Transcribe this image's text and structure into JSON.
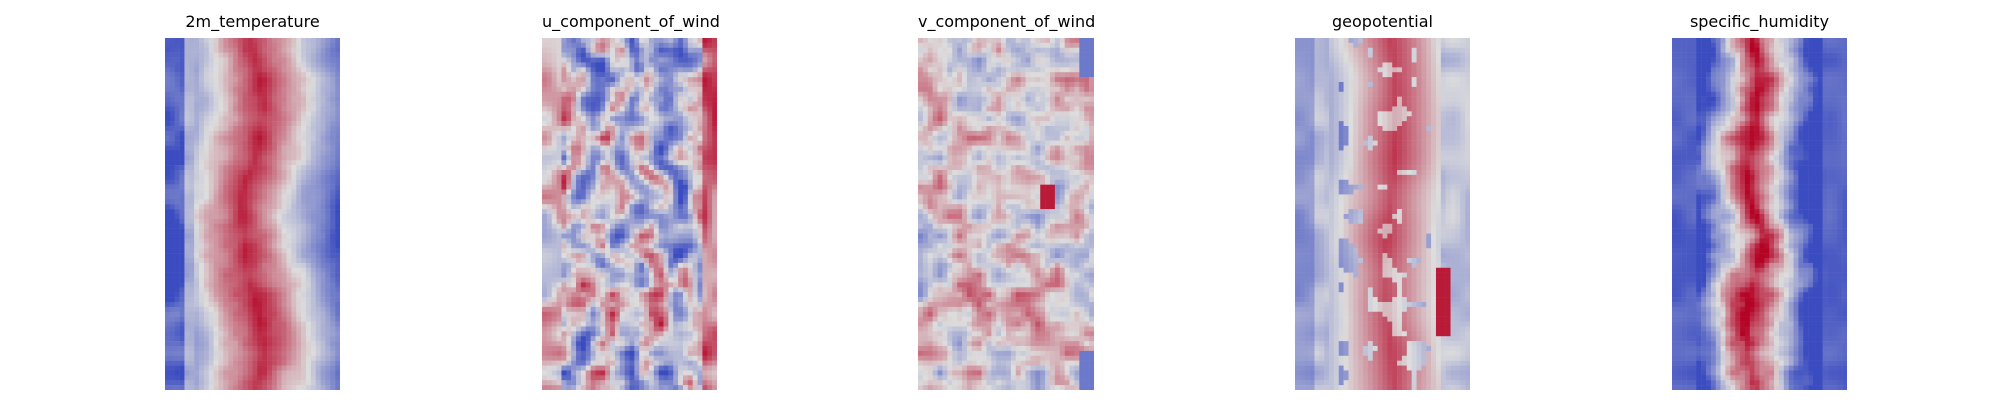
{
  "chart_data": [
    {
      "type": "heatmap",
      "title": "2m_temperature",
      "colormap": "coolwarm",
      "axes": "off",
      "pattern": "warm-center-band",
      "colors": {
        "low": "#3b4cc0",
        "mid": "#dddddd",
        "high": "#b40426"
      }
    },
    {
      "type": "heatmap",
      "title": "u_component_of_wind",
      "colormap": "coolwarm",
      "axes": "off",
      "pattern": "mixed-streaks",
      "colors": {
        "low": "#3b4cc0",
        "mid": "#dddddd",
        "high": "#b40426"
      }
    },
    {
      "type": "heatmap",
      "title": "v_component_of_wind",
      "colormap": "coolwarm",
      "axes": "off",
      "pattern": "near-neutral-noise",
      "colors": {
        "low": "#3b4cc0",
        "mid": "#dddddd",
        "high": "#b40426"
      }
    },
    {
      "type": "heatmap",
      "title": "geopotential",
      "colormap": "coolwarm",
      "axes": "off",
      "pattern": "warm-center-band-with-spots",
      "colors": {
        "low": "#3b4cc0",
        "mid": "#dddddd",
        "high": "#b40426"
      }
    },
    {
      "type": "heatmap",
      "title": "specific_humidity",
      "colormap": "coolwarm",
      "axes": "off",
      "pattern": "narrow-warm-core",
      "colors": {
        "low": "#3b4cc0",
        "mid": "#dddddd",
        "high": "#b40426"
      }
    }
  ]
}
